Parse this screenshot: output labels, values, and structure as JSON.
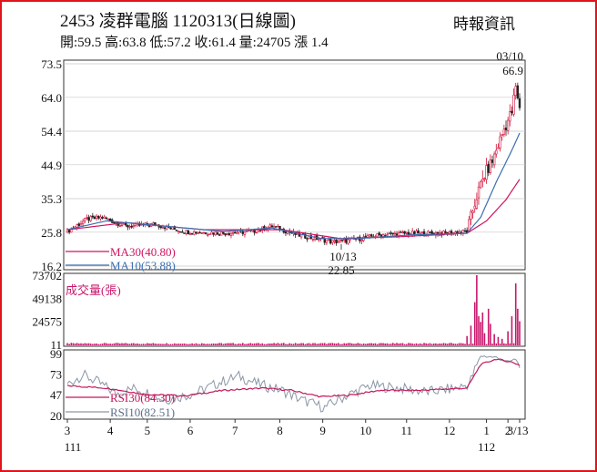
{
  "header": {
    "title": "2453  凌群電腦 1120313(日線圖)",
    "source": "時報資訊",
    "ohlc": "開:59.5 高:63.8 低:57.2 收:61.4 量:24705 漲 1.4"
  },
  "colors": {
    "frame": "#e0141b",
    "ma30": "#d0135f",
    "ma10": "#3b6fb2",
    "rsi30": "#c2185b",
    "rsi10": "#8a96a6",
    "volume": "#c8186c",
    "up": "#d3123a",
    "down": "#222222",
    "grid": "#c8c8c8"
  },
  "chart_data": [
    {
      "type": "candlestick",
      "panel": "price",
      "y_ticks": [
        "73.5",
        "64.0",
        "54.4",
        "44.9",
        "35.3",
        "25.8",
        "16.2"
      ],
      "ylim": [
        16.2,
        73.5
      ],
      "legend": [
        {
          "name": "MA30(40.80)",
          "color": "#d0135f"
        },
        {
          "name": "MA10(53.88)",
          "color": "#3b6fb2"
        }
      ],
      "annotations": [
        {
          "label": "03/10",
          "value": "66.9"
        },
        {
          "label": "10/13",
          "value": "22.85"
        }
      ],
      "anchors": [
        {
          "i": 0,
          "v": 26.0
        },
        {
          "i": 10,
          "v": 29.5
        },
        {
          "i": 18,
          "v": 30.0
        },
        {
          "i": 30,
          "v": 27.5
        },
        {
          "i": 45,
          "v": 28.0
        },
        {
          "i": 60,
          "v": 26.0
        },
        {
          "i": 80,
          "v": 25.5
        },
        {
          "i": 95,
          "v": 26.0
        },
        {
          "i": 105,
          "v": 27.5
        },
        {
          "i": 118,
          "v": 25.0
        },
        {
          "i": 128,
          "v": 24.0
        },
        {
          "i": 136,
          "v": 23.0
        },
        {
          "i": 145,
          "v": 23.5
        },
        {
          "i": 160,
          "v": 25.0
        },
        {
          "i": 175,
          "v": 25.5
        },
        {
          "i": 195,
          "v": 25.5
        },
        {
          "i": 205,
          "v": 26.0
        },
        {
          "i": 210,
          "v": 36.0
        },
        {
          "i": 214,
          "v": 42.0
        },
        {
          "i": 218,
          "v": 46.0
        },
        {
          "i": 224,
          "v": 55.0
        },
        {
          "i": 228,
          "v": 60.0
        },
        {
          "i": 230,
          "v": 66.9
        },
        {
          "i": 231,
          "v": 63.0
        },
        {
          "i": 232,
          "v": 61.4
        }
      ],
      "ma30_path": [
        {
          "i": 0,
          "v": 26.5
        },
        {
          "i": 30,
          "v": 28.5
        },
        {
          "i": 70,
          "v": 26.5
        },
        {
          "i": 110,
          "v": 26.5
        },
        {
          "i": 140,
          "v": 24.0
        },
        {
          "i": 170,
          "v": 24.5
        },
        {
          "i": 205,
          "v": 25.5
        },
        {
          "i": 215,
          "v": 29.0
        },
        {
          "i": 225,
          "v": 35.0
        },
        {
          "i": 232,
          "v": 40.8
        }
      ],
      "ma10_path": [
        {
          "i": 0,
          "v": 26.5
        },
        {
          "i": 20,
          "v": 29.0
        },
        {
          "i": 50,
          "v": 27.5
        },
        {
          "i": 80,
          "v": 26.0
        },
        {
          "i": 105,
          "v": 27.0
        },
        {
          "i": 130,
          "v": 24.0
        },
        {
          "i": 150,
          "v": 24.0
        },
        {
          "i": 175,
          "v": 25.0
        },
        {
          "i": 205,
          "v": 25.5
        },
        {
          "i": 212,
          "v": 30.0
        },
        {
          "i": 220,
          "v": 40.0
        },
        {
          "i": 228,
          "v": 49.0
        },
        {
          "i": 232,
          "v": 53.88
        }
      ],
      "n_days": 233
    },
    {
      "type": "bar",
      "panel": "volume",
      "y_ticks": [
        "73702",
        "49138",
        "24575",
        "11"
      ],
      "ylim": [
        11,
        73702
      ],
      "legend": [
        {
          "name": "成交量(張)",
          "color": "#c8186c"
        }
      ],
      "spikes": [
        {
          "i": 205,
          "v": 9000
        },
        {
          "i": 207,
          "v": 20000
        },
        {
          "i": 209,
          "v": 45000
        },
        {
          "i": 210,
          "v": 73700
        },
        {
          "i": 211,
          "v": 30000
        },
        {
          "i": 212,
          "v": 24000
        },
        {
          "i": 213,
          "v": 34000
        },
        {
          "i": 214,
          "v": 12000
        },
        {
          "i": 216,
          "v": 38000
        },
        {
          "i": 217,
          "v": 22000
        },
        {
          "i": 219,
          "v": 11000
        },
        {
          "i": 221,
          "v": 8000
        },
        {
          "i": 223,
          "v": 6000
        },
        {
          "i": 226,
          "v": 14000
        },
        {
          "i": 228,
          "v": 30000
        },
        {
          "i": 230,
          "v": 65000
        },
        {
          "i": 231,
          "v": 38000
        },
        {
          "i": 232,
          "v": 24705
        }
      ]
    },
    {
      "type": "line",
      "panel": "rsi",
      "y_ticks": [
        "99",
        "73",
        "47",
        "20"
      ],
      "ylim": [
        20,
        99
      ],
      "legend": [
        {
          "name": "RSI30(84.30)",
          "color": "#c2185b"
        },
        {
          "name": "RSI10(82.51)",
          "color": "#8a96a6"
        }
      ],
      "rsi30_path": [
        {
          "i": 0,
          "v": 58
        },
        {
          "i": 20,
          "v": 55
        },
        {
          "i": 40,
          "v": 47
        },
        {
          "i": 60,
          "v": 45
        },
        {
          "i": 80,
          "v": 52
        },
        {
          "i": 100,
          "v": 55
        },
        {
          "i": 115,
          "v": 52
        },
        {
          "i": 130,
          "v": 44
        },
        {
          "i": 145,
          "v": 46
        },
        {
          "i": 160,
          "v": 52
        },
        {
          "i": 180,
          "v": 52
        },
        {
          "i": 205,
          "v": 55
        },
        {
          "i": 212,
          "v": 85
        },
        {
          "i": 220,
          "v": 92
        },
        {
          "i": 228,
          "v": 88
        },
        {
          "i": 232,
          "v": 84.3
        }
      ],
      "rsi10_anchors": [
        {
          "i": 0,
          "v": 60
        },
        {
          "i": 8,
          "v": 72
        },
        {
          "i": 16,
          "v": 62
        },
        {
          "i": 25,
          "v": 48
        },
        {
          "i": 35,
          "v": 55
        },
        {
          "i": 50,
          "v": 40
        },
        {
          "i": 65,
          "v": 48
        },
        {
          "i": 78,
          "v": 62
        },
        {
          "i": 88,
          "v": 70
        },
        {
          "i": 98,
          "v": 60
        },
        {
          "i": 110,
          "v": 52
        },
        {
          "i": 120,
          "v": 40
        },
        {
          "i": 132,
          "v": 30
        },
        {
          "i": 142,
          "v": 44
        },
        {
          "i": 155,
          "v": 58
        },
        {
          "i": 170,
          "v": 55
        },
        {
          "i": 185,
          "v": 50
        },
        {
          "i": 200,
          "v": 55
        },
        {
          "i": 206,
          "v": 60
        },
        {
          "i": 212,
          "v": 96
        },
        {
          "i": 220,
          "v": 94
        },
        {
          "i": 226,
          "v": 88
        },
        {
          "i": 230,
          "v": 92
        },
        {
          "i": 232,
          "v": 82.51
        }
      ]
    }
  ],
  "x_axis": {
    "labels": [
      {
        "text": "3",
        "i": 0
      },
      {
        "text": "4",
        "i": 22
      },
      {
        "text": "5",
        "i": 41
      },
      {
        "text": "6",
        "i": 63
      },
      {
        "text": "7",
        "i": 86
      },
      {
        "text": "8",
        "i": 109
      },
      {
        "text": "9",
        "i": 131
      },
      {
        "text": "10",
        "i": 153
      },
      {
        "text": "11",
        "i": 174
      },
      {
        "text": "12",
        "i": 196
      },
      {
        "text": "1",
        "i": 215
      },
      {
        "text": "2",
        "i": 226
      },
      {
        "text": "3/13",
        "i": 232
      }
    ],
    "year_labels": [
      {
        "text": "111",
        "i": 0
      },
      {
        "text": "112",
        "i": 215
      }
    ]
  }
}
